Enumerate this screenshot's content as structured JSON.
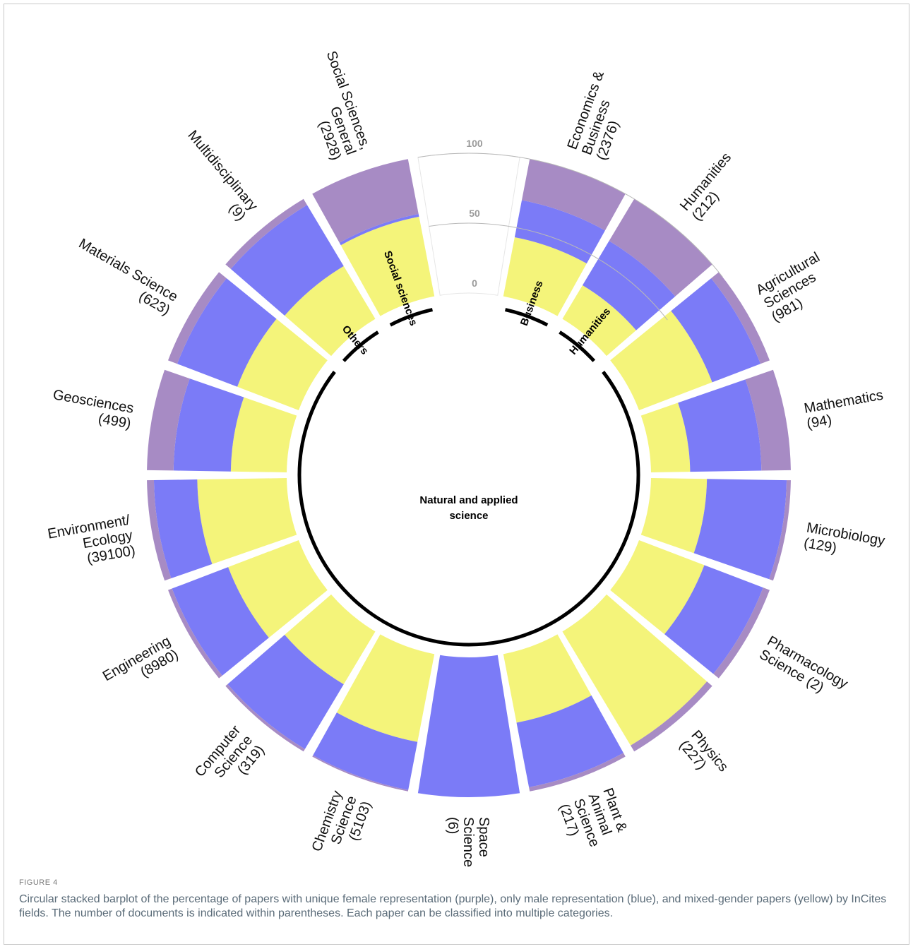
{
  "figure": {
    "label": "FIGURE 4",
    "caption": "Circular stacked barplot of the percentage of papers with unique female representation (purple), only male representation (blue), and mixed-gender papers (yellow) by InCites fields. The number of documents is indicated within parentheses. Each paper can be classified into multiple categories."
  },
  "chart_data": {
    "type": "circular stacked bar",
    "axis": {
      "ticks": [
        "0",
        "50",
        "100"
      ],
      "range": [
        0,
        100
      ]
    },
    "stack_order": [
      "mixed",
      "male",
      "female"
    ],
    "colors": {
      "mixed": "#f4f47a",
      "male": "#7b7bf7",
      "female": "#a78bc4",
      "gap": "#ffffff"
    },
    "groups": [
      {
        "name": "Business",
        "categories": [
          "Economics & Business (2376)"
        ]
      },
      {
        "name": "Humanities",
        "categories": [
          "Humanities (212)"
        ]
      },
      {
        "name": "Natural and applied science",
        "categories": [
          "Agricultural Sciences (981)",
          "Mathematics (94)",
          "Microbiology (129)",
          "Pharmacology Science (2)",
          "Physics (227)",
          "Plant & Animal Science (217)",
          "Space Science (6)",
          "Chemistry Science (5103)",
          "Computer Science (319)",
          "Engineering (8980)",
          "Environment/ Ecology (39100)",
          "Geosciences (499)",
          "Materials Science (623)"
        ]
      },
      {
        "name": "Others",
        "categories": [
          "Multidisciplinary (9)"
        ]
      },
      {
        "name": "Social sciences",
        "categories": [
          "Social Sciences, General (2928)"
        ]
      }
    ],
    "bars": [
      {
        "label": [
          "Economics &",
          "Business",
          "(2376)"
        ],
        "mixed": 43,
        "male": 27,
        "female": 30
      },
      {
        "label": [
          "Humanities",
          "(212)"
        ],
        "mixed": 28,
        "male": 37,
        "female": 35
      },
      {
        "label": [
          "Agricultural",
          "Sciences",
          "(981)"
        ],
        "mixed": 56,
        "male": 37,
        "female": 7
      },
      {
        "label": [
          "Mathematics",
          "(94)"
        ],
        "mixed": 28,
        "male": 51,
        "female": 21
      },
      {
        "label": [
          "Microbiology",
          "(129)"
        ],
        "mixed": 40,
        "male": 57,
        "female": 3
      },
      {
        "label": [
          "Pharmacology",
          "Science (2)"
        ],
        "mixed": 50,
        "male": 45,
        "female": 5
      },
      {
        "label": [
          "Physics",
          "(227)"
        ],
        "mixed": 95,
        "male": 0,
        "female": 5
      },
      {
        "label": [
          "Plant &",
          "Animal",
          "Science",
          "(217)"
        ],
        "mixed": 50,
        "male": 47,
        "female": 3
      },
      {
        "label": [
          "Space",
          "Science",
          "(6)"
        ],
        "mixed": 0,
        "male": 100,
        "female": 0
      },
      {
        "label": [
          "Chemistry",
          "Science",
          "(5103)"
        ],
        "mixed": 64,
        "male": 35,
        "female": 1
      },
      {
        "label": [
          "Computer",
          "Science",
          "(319)"
        ],
        "mixed": 44,
        "male": 54,
        "female": 2
      },
      {
        "label": [
          "Engineering",
          "(8980)"
        ],
        "mixed": 54,
        "male": 43,
        "female": 3
      },
      {
        "label": [
          "Environment/",
          "Ecology",
          "(39100)"
        ],
        "mixed": 64,
        "male": 31,
        "female": 5
      },
      {
        "label": [
          "Geosciences",
          "(499)"
        ],
        "mixed": 40,
        "male": 41,
        "female": 19
      },
      {
        "label": [
          "Materials Science",
          "(623)"
        ],
        "mixed": 47,
        "male": 46,
        "female": 7
      },
      {
        "label": [
          "Multidisciplinary",
          "(9)"
        ],
        "mixed": 44,
        "male": 51,
        "female": 5
      },
      {
        "label": [
          "Social Sciences,",
          "General",
          "(2928)"
        ],
        "mixed": 58,
        "male": 2,
        "female": 40
      }
    ]
  }
}
